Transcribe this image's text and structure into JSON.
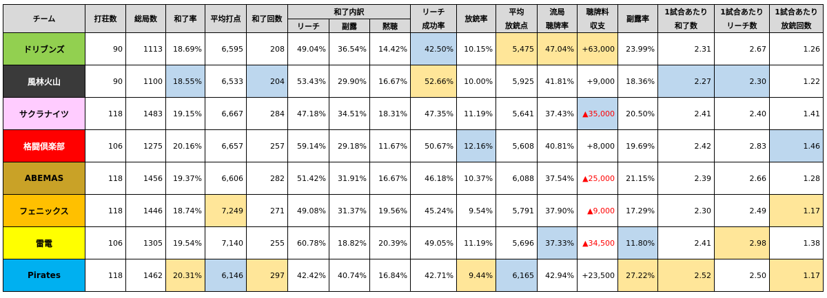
{
  "headers": {
    "team": "チーム",
    "sessions": "打荘数",
    "games": "総局数",
    "win_rate": "和了率",
    "avg_win": "平均打点",
    "win_count": "和了回数",
    "win_breakdown": "和了内訳",
    "riichi": "リーチ",
    "call": "副露",
    "dama": "黙聴",
    "riichi_success_top": "リーチ",
    "riichi_success_bottom": "成功率",
    "deal_in_rate": "放銃率",
    "avg_deal_in_top": "平均",
    "avg_deal_in_bottom": "放銃点",
    "draw_tenpai_top": "流局",
    "draw_tenpai_bottom": "聴牌率",
    "tenpai_fee_top": "聴牌料",
    "tenpai_fee_bottom": "収支",
    "call_rate": "副露率",
    "per_game_wins_top": "1試合あたり",
    "per_game_wins_bottom": "和了数",
    "per_game_riichi_top": "1試合あたり",
    "per_game_riichi_bottom": "リーチ数",
    "per_game_deal_in_top": "1試合あたり",
    "per_game_deal_in_bottom": "放銃回数"
  },
  "colors": {
    "header_bg": "#d9d9d9",
    "highlight_blue": "#bdd7ee",
    "highlight_yellow": "#ffe699",
    "negative_red": "#ff0000"
  },
  "rows": [
    {
      "team": "ドリブンズ",
      "team_bg": "#92d050",
      "team_fg": "#000000",
      "sessions": "90",
      "games": "1113",
      "win_rate": "18.69%",
      "avg_win": "6,595",
      "win_count": "208",
      "riichi": "49.04%",
      "call": "36.54%",
      "dama": "14.42%",
      "riichi_success": "42.50%",
      "deal_in_rate": "10.15%",
      "avg_deal_in": "5,475",
      "draw_tenpai": "47.04%",
      "tenpai_fee": "+63,000",
      "call_rate": "23.99%",
      "pg_wins": "2.31",
      "pg_riichi": "2.67",
      "pg_deal_in": "1.26"
    },
    {
      "team": "風林火山",
      "team_bg": "#3a3a3a",
      "team_fg": "#ffffff",
      "sessions": "90",
      "games": "1100",
      "win_rate": "18.55%",
      "avg_win": "6,533",
      "win_count": "204",
      "riichi": "53.43%",
      "call": "29.90%",
      "dama": "16.67%",
      "riichi_success": "52.66%",
      "deal_in_rate": "10.00%",
      "avg_deal_in": "5,925",
      "draw_tenpai": "41.81%",
      "tenpai_fee": "+9,000",
      "call_rate": "18.36%",
      "pg_wins": "2.27",
      "pg_riichi": "2.30",
      "pg_deal_in": "1.22"
    },
    {
      "team": "サクラナイツ",
      "team_bg": "#ffccff",
      "team_fg": "#000000",
      "sessions": "118",
      "games": "1483",
      "win_rate": "19.15%",
      "avg_win": "6,667",
      "win_count": "284",
      "riichi": "47.18%",
      "call": "34.51%",
      "dama": "18.31%",
      "riichi_success": "47.35%",
      "deal_in_rate": "11.19%",
      "avg_deal_in": "5,641",
      "draw_tenpai": "37.43%",
      "tenpai_fee": "▲35,000",
      "call_rate": "20.50%",
      "pg_wins": "2.41",
      "pg_riichi": "2.40",
      "pg_deal_in": "1.41"
    },
    {
      "team": "格闘倶楽部",
      "team_bg": "#ff0000",
      "team_fg": "#ffffff",
      "sessions": "106",
      "games": "1275",
      "win_rate": "20.16%",
      "avg_win": "6,657",
      "win_count": "257",
      "riichi": "59.14%",
      "call": "29.18%",
      "dama": "11.67%",
      "riichi_success": "50.67%",
      "deal_in_rate": "12.16%",
      "avg_deal_in": "5,608",
      "draw_tenpai": "40.81%",
      "tenpai_fee": "+8,000",
      "call_rate": "19.69%",
      "pg_wins": "2.42",
      "pg_riichi": "2.83",
      "pg_deal_in": "1.46"
    },
    {
      "team": "ABEMAS",
      "team_bg": "#c9a227",
      "team_fg": "#000000",
      "sessions": "118",
      "games": "1456",
      "win_rate": "19.37%",
      "avg_win": "6,606",
      "win_count": "282",
      "riichi": "51.42%",
      "call": "31.91%",
      "dama": "16.67%",
      "riichi_success": "46.18%",
      "deal_in_rate": "10.37%",
      "avg_deal_in": "6,088",
      "draw_tenpai": "37.54%",
      "tenpai_fee": "▲25,000",
      "call_rate": "21.15%",
      "pg_wins": "2.39",
      "pg_riichi": "2.66",
      "pg_deal_in": "1.28"
    },
    {
      "team": "フェニックス",
      "team_bg": "#ffc000",
      "team_fg": "#000000",
      "sessions": "118",
      "games": "1446",
      "win_rate": "18.74%",
      "avg_win": "7,249",
      "win_count": "271",
      "riichi": "49.08%",
      "call": "31.37%",
      "dama": "19.56%",
      "riichi_success": "45.24%",
      "deal_in_rate": "9.54%",
      "avg_deal_in": "5,791",
      "draw_tenpai": "37.90%",
      "tenpai_fee": "▲9,000",
      "call_rate": "17.29%",
      "pg_wins": "2.30",
      "pg_riichi": "2.49",
      "pg_deal_in": "1.17"
    },
    {
      "team": "雷電",
      "team_bg": "#ffff00",
      "team_fg": "#000000",
      "sessions": "106",
      "games": "1305",
      "win_rate": "19.54%",
      "avg_win": "7,140",
      "win_count": "255",
      "riichi": "60.78%",
      "call": "18.82%",
      "dama": "20.39%",
      "riichi_success": "49.05%",
      "deal_in_rate": "11.19%",
      "avg_deal_in": "5,696",
      "draw_tenpai": "37.33%",
      "tenpai_fee": "▲34,500",
      "call_rate": "11.80%",
      "pg_wins": "2.41",
      "pg_riichi": "2.98",
      "pg_deal_in": "1.38"
    },
    {
      "team": "Pirates",
      "team_bg": "#00b0f0",
      "team_fg": "#000000",
      "sessions": "118",
      "games": "1462",
      "win_rate": "20.31%",
      "avg_win": "6,146",
      "win_count": "297",
      "riichi": "42.42%",
      "call": "40.74%",
      "dama": "16.84%",
      "riichi_success": "42.71%",
      "deal_in_rate": "9.44%",
      "avg_deal_in": "6,165",
      "draw_tenpai": "42.94%",
      "tenpai_fee": "+23,500",
      "call_rate": "27.22%",
      "pg_wins": "2.52",
      "pg_riichi": "2.50",
      "pg_deal_in": "1.17"
    }
  ]
}
